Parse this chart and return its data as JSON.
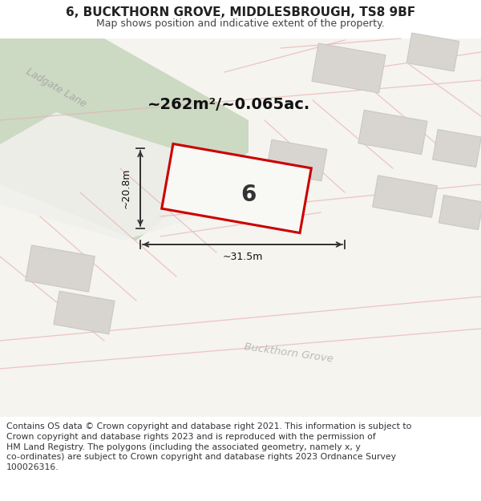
{
  "title": "6, BUCKTHORN GROVE, MIDDLESBROUGH, TS8 9BF",
  "subtitle": "Map shows position and indicative extent of the property.",
  "footer_lines": [
    "Contains OS data © Crown copyright and database right 2021. This information is subject to Crown copyright and database rights 2023 and is reproduced with the permission of",
    "HM Land Registry. The polygons (including the associated geometry, namely x, y co-ordinates) are subject to Crown copyright and database rights 2023 Ordnance Survey",
    "100026316."
  ],
  "area_label": "~262m²/~0.065ac.",
  "width_label": "~31.5m",
  "height_label": "~20.8m",
  "plot_number": "6",
  "bg_color": "#f5f4ef",
  "road_green": "#c5d5bc",
  "road_line_color": "#e8b0b0",
  "plot_red": "#cc0000",
  "building_gray": "#d8d5d0",
  "building_edge": "#cccccc",
  "dim_color": "#333333",
  "text_dark": "#222222",
  "text_gray": "#999999",
  "header_title_size": 11,
  "header_sub_size": 9,
  "footer_size": 7.8,
  "area_text_size": 14,
  "dim_text_size": 9,
  "label_text_size": 9,
  "plot_num_size": 20
}
